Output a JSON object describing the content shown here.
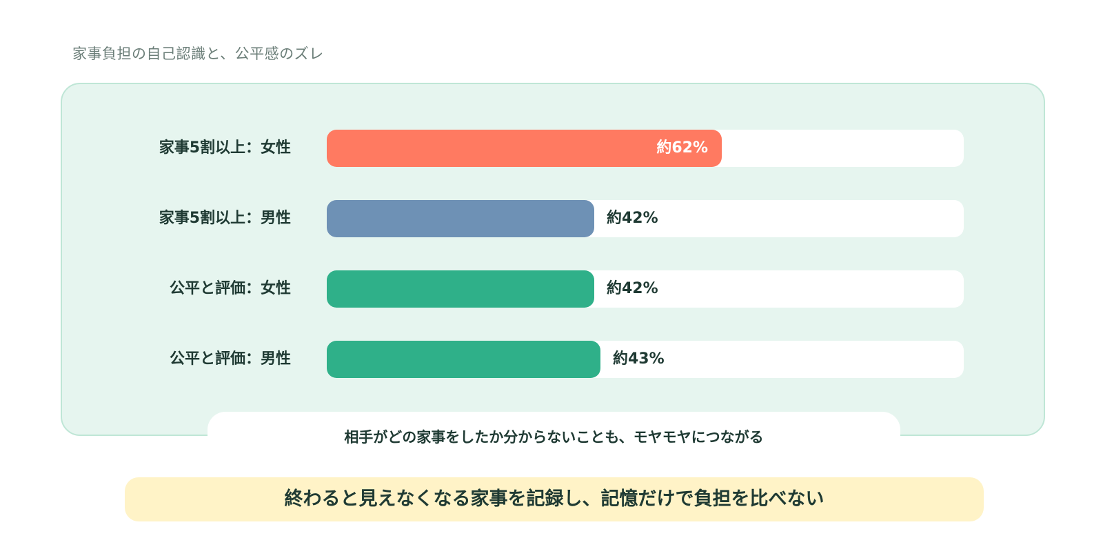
{
  "page": {
    "title": "家事負担の自己認識と、公平感のズレ"
  },
  "chart_data": {
    "type": "bar",
    "orientation": "horizontal",
    "title": "家事負担の自己認識と、公平感のズレ",
    "xlim": [
      0,
      100
    ],
    "grid": false,
    "categories": [
      "家事5割以上：女性",
      "家事5割以上：男性",
      "公平と評価：女性",
      "公平と評価：男性"
    ],
    "values": [
      62,
      42,
      42,
      43
    ],
    "value_labels": [
      "約62%",
      "約42%",
      "約42%",
      "約43%"
    ],
    "colors": [
      "#ff7a61",
      "#6e91b5",
      "#2fb089",
      "#2fb089"
    ],
    "label_inside": [
      true,
      false,
      false,
      false
    ]
  },
  "note": {
    "text": "相手がどの家事をしたか分からないことも、モヤモヤにつながる"
  },
  "callout": {
    "text": "終わると見えなくなる家事を記録し、記憶だけで負担を比べない"
  },
  "colors": {
    "panel_bg": "#e6f5ef",
    "panel_border": "#bfe6d6",
    "track": "#ffffff",
    "callout_bg": "#fff3c7",
    "text_dark": "#1f3a33",
    "text_muted": "#6b7e78"
  }
}
